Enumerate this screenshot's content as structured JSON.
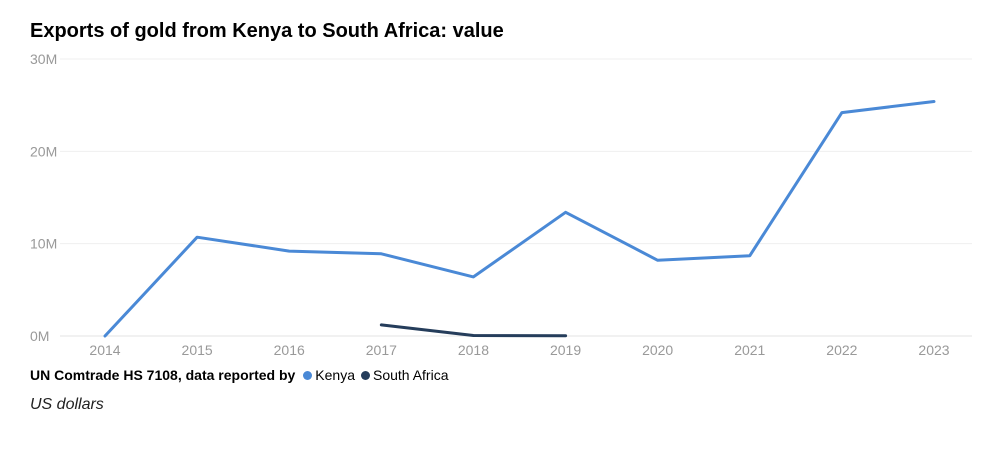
{
  "chart_data": {
    "type": "line",
    "title": "Exports of gold from Kenya to South Africa: value",
    "x": [
      "2014",
      "2015",
      "2016",
      "2017",
      "2018",
      "2019",
      "2020",
      "2021",
      "2022",
      "2023"
    ],
    "y_ticks": [
      "0M",
      "10M",
      "20M",
      "30M"
    ],
    "ylim": [
      0,
      30000000
    ],
    "grid": true,
    "legend_prefix": "UN Comtrade HS 7108, data reported by",
    "legend_placement": "bottom-left",
    "units_label": "US dollars",
    "series": [
      {
        "name": "Kenya",
        "color": "#4a89d6",
        "values": [
          0,
          10700000,
          9200000,
          8900000,
          6400000,
          13400000,
          8200000,
          8700000,
          24200000,
          25400000
        ]
      },
      {
        "name": "South Africa",
        "color": "#253d5b",
        "values": [
          null,
          null,
          null,
          1200000,
          50000,
          20000,
          null,
          null,
          null,
          null
        ]
      }
    ]
  }
}
